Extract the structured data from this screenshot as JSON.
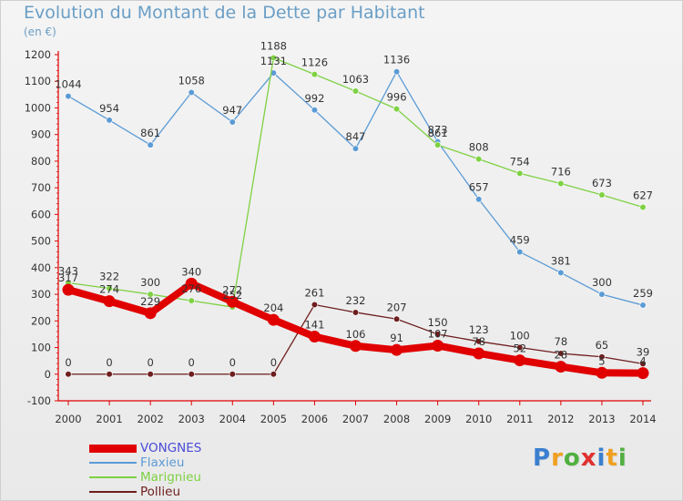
{
  "chart_data": {
    "type": "line",
    "title": "Evolution du Montant de la Dette par Habitant",
    "subtitle": "(en €)",
    "xlabel": "",
    "ylabel": "",
    "x": [
      "2000",
      "2001",
      "2002",
      "2003",
      "2004",
      "2005",
      "2006",
      "2007",
      "2008",
      "2009",
      "2010",
      "2011",
      "2012",
      "2013",
      "2014"
    ],
    "ylim": [
      -100,
      1200
    ],
    "yticks": [
      -100,
      0,
      100,
      200,
      300,
      400,
      500,
      600,
      700,
      800,
      900,
      1000,
      1100,
      1200
    ],
    "grid": false,
    "legend_position": "bottom-left",
    "series": [
      {
        "name": "VONGNES",
        "color": "#e00000",
        "values": [
          317,
          274,
          229,
          340,
          272,
          204,
          141,
          106,
          91,
          107,
          78,
          52,
          28,
          5,
          4
        ]
      },
      {
        "name": "Flaxieu",
        "color": "#5b9bd5",
        "values": [
          1044,
          954,
          861,
          1058,
          947,
          1131,
          992,
          847,
          1136,
          873,
          657,
          459,
          381,
          300,
          259
        ]
      },
      {
        "name": "Marignieu",
        "color": "#7ed143",
        "values": [
          343,
          322,
          300,
          276,
          252,
          1188,
          1126,
          1063,
          996,
          861,
          808,
          754,
          716,
          673,
          627
        ]
      },
      {
        "name": "Pollieu",
        "color": "#6e1e1e",
        "values": [
          0,
          0,
          0,
          0,
          0,
          0,
          261,
          232,
          207,
          150,
          123,
          100,
          78,
          65,
          39
        ]
      }
    ]
  },
  "logo": {
    "letters": [
      "P",
      "r",
      "o",
      "x",
      "i",
      "t",
      "i"
    ],
    "colors": [
      "#3a7fd0",
      "#f0a020",
      "#50b040",
      "#e03030",
      "#3a7fd0",
      "#f0a020",
      "#50b040"
    ]
  }
}
